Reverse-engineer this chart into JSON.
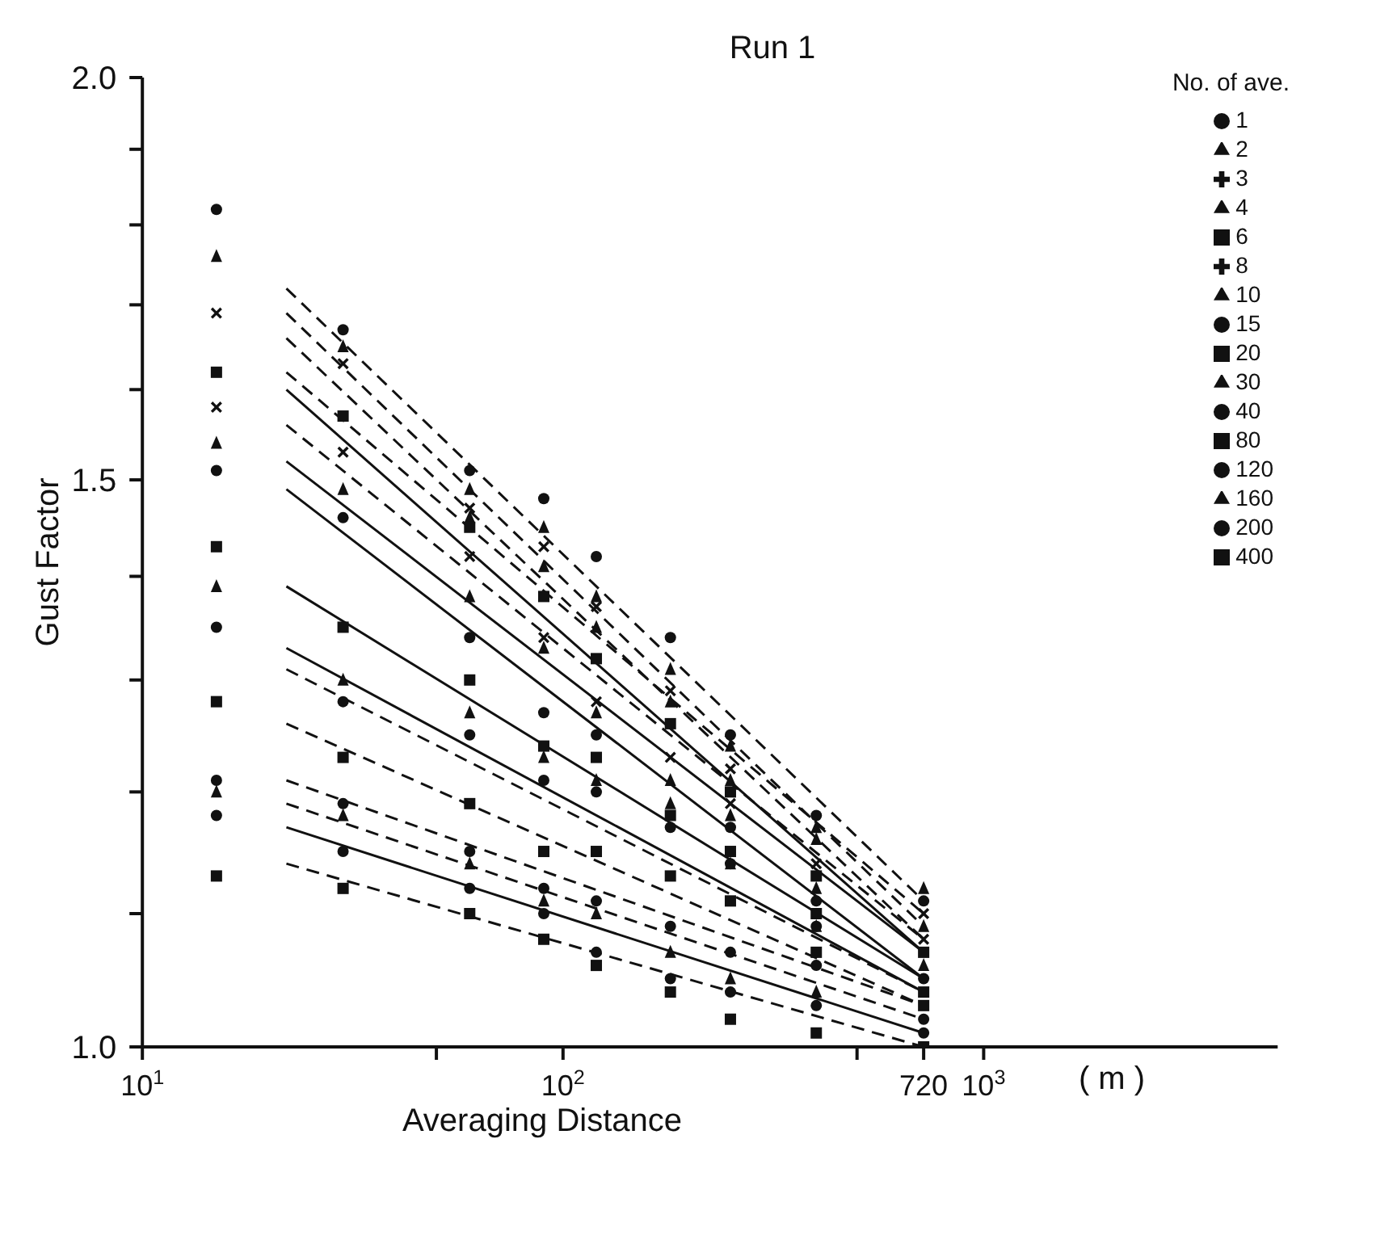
{
  "chart_data": {
    "type": "scatter",
    "title": "Run 1",
    "xlabel": "Averaging Distance",
    "ylabel": "Gust Factor",
    "legend_title": "No. of ave.",
    "annotations": [
      "( m )"
    ],
    "log": "xy",
    "legend": "top right",
    "x": [
      15,
      22,
      30,
      60,
      90,
      120,
      180,
      250,
      400,
      720
    ],
    "xlim": [
      10,
      5000
    ],
    "xticks": [
      {
        "value": 10,
        "label": "10$^{1}$"
      },
      {
        "value": 50,
        "label": null
      },
      {
        "value": 100,
        "label": "10$^{2}$"
      },
      {
        "value": 500,
        "label": null
      },
      {
        "value": 720,
        "label": "720"
      },
      {
        "value": 1000,
        "label": "10$^{3}$"
      }
    ],
    "ylim": [
      1,
      2
    ],
    "yticks": [
      {
        "value": 1,
        "label": "1.0"
      },
      {
        "value": 1.1,
        "label": null
      },
      {
        "value": 1.2,
        "label": null
      },
      {
        "value": 1.3,
        "label": null
      },
      {
        "value": 1.4,
        "label": null
      },
      {
        "value": 1.5,
        "label": "1.5"
      },
      {
        "value": 1.6,
        "label": null
      },
      {
        "value": 1.7,
        "label": null
      },
      {
        "value": 1.8,
        "label": null
      },
      {
        "value": 1.9,
        "label": null
      },
      {
        "value": 2,
        "label": "2.0"
      }
    ],
    "series": [
      {
        "name": "1",
        "marker": "circle",
        "color": "#111111",
        "values": [
          1.82,
          null,
          1.67,
          1.51,
          1.48,
          1.42,
          1.34,
          1.25,
          1.18,
          1.11
        ]
      },
      {
        "name": "2",
        "marker": "triangle",
        "color": "#111111",
        "values": [
          1.76,
          null,
          1.65,
          1.49,
          1.45,
          1.38,
          1.31,
          1.24,
          1.17,
          1.09
        ]
      },
      {
        "name": "3",
        "marker": "cross",
        "color": "#111111",
        "values": [
          1.69,
          null,
          1.63,
          1.47,
          1.43,
          1.37,
          1.29,
          1.22,
          1.14,
          1.08
        ]
      },
      {
        "name": "4",
        "marker": "triangle",
        "color": "#111111",
        "values": [
          null,
          null,
          null,
          1.46,
          1.41,
          1.35,
          1.28,
          1.21,
          1.16,
          1.12
        ]
      },
      {
        "name": "6",
        "marker": "square",
        "color": "#111111",
        "values": [
          1.62,
          null,
          1.57,
          1.45,
          1.38,
          1.32,
          1.26,
          1.2,
          1.13,
          1.07
        ]
      },
      {
        "name": "8",
        "marker": "cross",
        "color": "#111111",
        "values": [
          1.58,
          null,
          1.53,
          1.42,
          1.34,
          1.28,
          1.23,
          1.19,
          null,
          1.1
        ]
      },
      {
        "name": "10",
        "marker": "triangle",
        "color": "#111111",
        "values": [
          1.54,
          null,
          1.49,
          1.38,
          1.33,
          1.27,
          1.21,
          1.18,
          1.12,
          1.06
        ]
      },
      {
        "name": "15",
        "marker": "circle",
        "color": "#111111",
        "values": [
          1.51,
          null,
          1.46,
          1.34,
          1.27,
          1.25,
          null,
          1.17,
          1.11,
          1.05
        ]
      },
      {
        "name": "20",
        "marker": "square",
        "color": "#111111",
        "values": [
          1.43,
          null,
          1.35,
          1.3,
          1.24,
          1.23,
          1.18,
          1.15,
          1.1,
          1.04
        ]
      },
      {
        "name": "30",
        "marker": "triangle",
        "color": "#111111",
        "values": [
          1.39,
          null,
          1.3,
          1.27,
          1.23,
          1.21,
          1.19,
          1.14,
          1.09,
          null
        ]
      },
      {
        "name": "40",
        "marker": "circle",
        "color": "#111111",
        "values": [
          1.35,
          null,
          1.28,
          1.25,
          1.21,
          1.2,
          1.17,
          1.14,
          1.09,
          null
        ]
      },
      {
        "name": "80",
        "marker": "square",
        "color": "#111111",
        "values": [
          1.28,
          null,
          1.23,
          1.19,
          1.15,
          1.15,
          1.13,
          1.11,
          1.07,
          1.03
        ]
      },
      {
        "name": "120",
        "marker": "circle",
        "color": "#111111",
        "values": [
          1.21,
          null,
          1.19,
          1.15,
          1.12,
          1.11,
          1.09,
          1.07,
          1.06,
          1.02
        ]
      },
      {
        "name": "160",
        "marker": "triangle",
        "color": "#111111",
        "values": [
          1.2,
          null,
          1.18,
          1.14,
          1.11,
          1.1,
          1.07,
          1.05,
          1.04,
          null
        ]
      },
      {
        "name": "200",
        "marker": "circle",
        "color": "#111111",
        "values": [
          1.18,
          null,
          1.15,
          1.12,
          1.1,
          1.07,
          1.05,
          1.04,
          1.03,
          1.01
        ]
      },
      {
        "name": "400",
        "marker": "square",
        "color": "#111111",
        "values": [
          1.13,
          null,
          1.12,
          1.1,
          1.08,
          1.06,
          1.04,
          1.02,
          1.01,
          1
        ]
      },
      {
        "type": "line",
        "values": [
          null,
          1.72,
          null,
          null,
          null,
          null,
          null,
          null,
          null,
          1.11
        ],
        "color": "#111111",
        "line_style": "dashed"
      },
      {
        "type": "line",
        "values": [
          null,
          1.69,
          null,
          null,
          null,
          null,
          null,
          null,
          null,
          1.09
        ],
        "color": "#111111",
        "line_style": "dashed"
      },
      {
        "type": "line",
        "values": [
          null,
          1.66,
          null,
          null,
          null,
          null,
          null,
          null,
          null,
          1.08
        ],
        "color": "#111111",
        "line_style": "dashed"
      },
      {
        "type": "line",
        "values": [
          null,
          1.62,
          null,
          null,
          null,
          null,
          null,
          null,
          null,
          1.1
        ],
        "color": "#111111",
        "line_style": "dashed"
      },
      {
        "type": "line",
        "values": [
          null,
          1.6,
          null,
          null,
          null,
          null,
          null,
          null,
          null,
          1.07
        ],
        "color": "#111111",
        "line_style": "solid"
      },
      {
        "type": "line",
        "values": [
          null,
          1.56,
          null,
          null,
          null,
          null,
          null,
          null,
          null,
          1.08
        ],
        "color": "#111111",
        "line_style": "dashed"
      },
      {
        "type": "line",
        "values": [
          null,
          1.52,
          null,
          null,
          null,
          null,
          null,
          null,
          null,
          1.07
        ],
        "color": "#111111",
        "line_style": "solid"
      },
      {
        "type": "line",
        "values": [
          null,
          1.49,
          null,
          null,
          null,
          null,
          null,
          null,
          null,
          1.05
        ],
        "color": "#111111",
        "line_style": "solid"
      },
      {
        "type": "line",
        "values": [
          null,
          1.39,
          null,
          null,
          null,
          null,
          null,
          null,
          null,
          1.05
        ],
        "color": "#111111",
        "line_style": "solid"
      },
      {
        "type": "line",
        "values": [
          null,
          1.33,
          null,
          null,
          null,
          null,
          null,
          null,
          null,
          1.04
        ],
        "color": "#111111",
        "line_style": "solid"
      },
      {
        "type": "line",
        "values": [
          null,
          1.31,
          null,
          null,
          null,
          null,
          null,
          null,
          null,
          1.04
        ],
        "color": "#111111",
        "line_style": "dashed"
      },
      {
        "type": "line",
        "values": [
          null,
          1.26,
          null,
          null,
          null,
          null,
          null,
          null,
          null,
          1.03
        ],
        "color": "#111111",
        "line_style": "dashed"
      },
      {
        "type": "line",
        "values": [
          null,
          1.21,
          null,
          null,
          null,
          null,
          null,
          null,
          null,
          1.03
        ],
        "color": "#111111",
        "line_style": "dashed"
      },
      {
        "type": "line",
        "values": [
          null,
          1.19,
          null,
          null,
          null,
          null,
          null,
          null,
          null,
          1.02
        ],
        "color": "#111111",
        "line_style": "dashed"
      },
      {
        "type": "line",
        "values": [
          null,
          1.17,
          null,
          null,
          null,
          null,
          null,
          null,
          null,
          1.01
        ],
        "color": "#111111",
        "line_style": "solid"
      },
      {
        "type": "line",
        "values": [
          null,
          1.14,
          null,
          null,
          null,
          null,
          null,
          null,
          null,
          1
        ],
        "color": "#111111",
        "line_style": "dashed"
      }
    ]
  }
}
